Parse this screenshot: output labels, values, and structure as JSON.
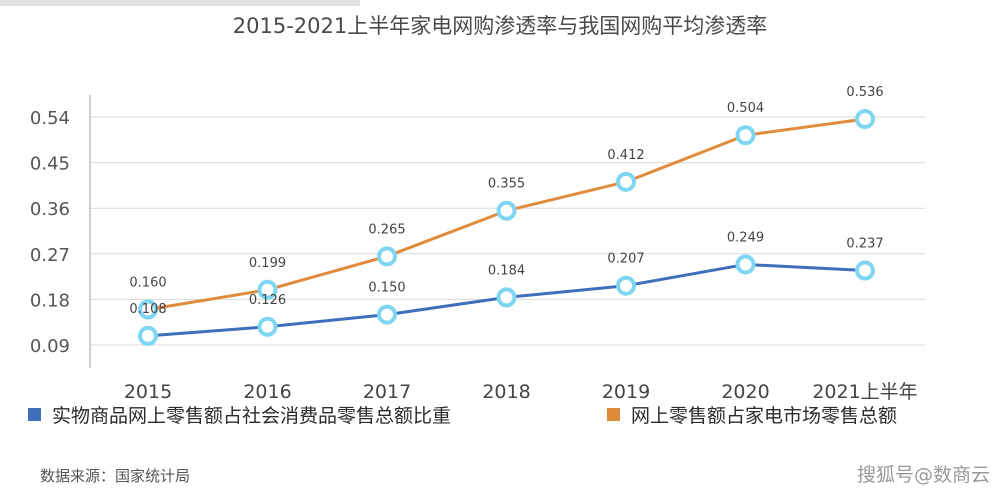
{
  "chart_data": {
    "type": "line",
    "title": "2015-2021上半年家电网购渗透率与我国网购平均渗透率",
    "categories": [
      "2015",
      "2016",
      "2017",
      "2018",
      "2019",
      "2020",
      "2021上半年"
    ],
    "y_ticks": [
      "0.54",
      "0.45",
      "0.36",
      "0.27",
      "0.18",
      "0.09"
    ],
    "ylim": [
      0.0,
      0.54
    ],
    "grid": true,
    "legend_position": "bottom",
    "series": [
      {
        "name": "实物商品网上零售额占社会消费品零售总额比重",
        "color": "#3f6fba",
        "values": [
          0.108,
          0.126,
          0.15,
          0.184,
          0.207,
          0.249,
          0.237
        ],
        "labels": [
          "0.108",
          "0.126",
          "0.150",
          "0.184",
          "0.207",
          "0.249",
          "0.237"
        ]
      },
      {
        "name": "网上零售额占家电市场零售总额",
        "color": "#e08a3c",
        "values": [
          0.16,
          0.199,
          0.265,
          0.355,
          0.412,
          0.504,
          0.536
        ],
        "labels": [
          "0.160",
          "0.199",
          "0.265",
          "0.355",
          "0.412",
          "0.504",
          "0.536"
        ]
      }
    ],
    "marker_color": "#7fd6f2"
  },
  "source": "数据来源：国家统计局",
  "watermark": "搜狐号@数商云"
}
